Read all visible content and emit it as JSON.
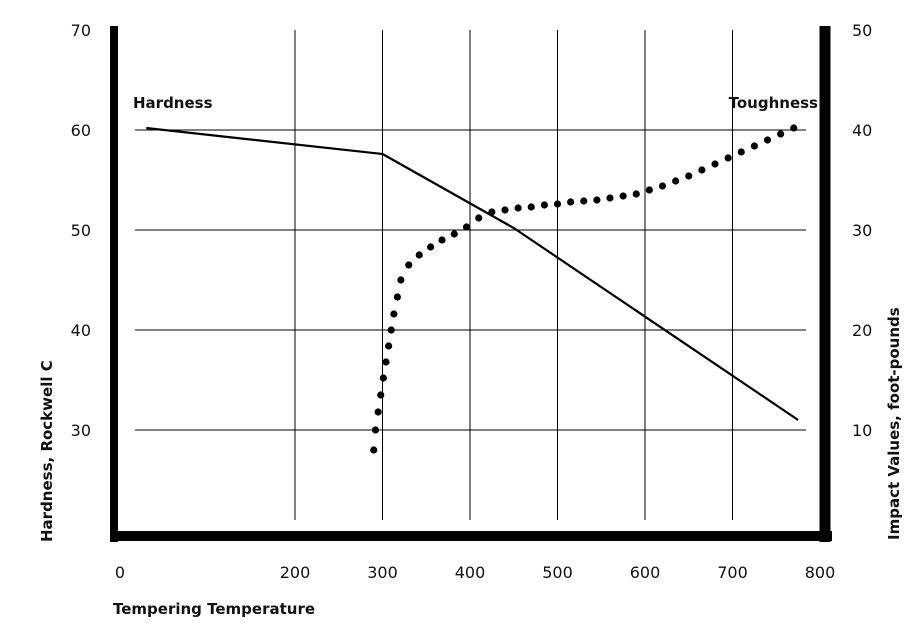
{
  "chart_data": {
    "type": "line",
    "xlabel": "Tempering Temperature",
    "ylabel": "Hardness, Rockwell C",
    "y2label": "Impact Values, foot-pounds",
    "xlim": [
      0,
      800
    ],
    "ylim": [
      20,
      70
    ],
    "y2lim": [
      0,
      50
    ],
    "x_ticks": [
      0,
      200,
      300,
      400,
      500,
      600,
      700,
      800
    ],
    "y_ticks": [
      30,
      40,
      50,
      60,
      70
    ],
    "y2_ticks": [
      10,
      20,
      30,
      40,
      50
    ],
    "grid": true,
    "annotations": {
      "hardness": "Hardness",
      "toughness": "Toughness"
    },
    "series": [
      {
        "name": "Hardness",
        "axis": "left",
        "style": "solid",
        "x": [
          30,
          300,
          450,
          775
        ],
        "y": [
          60.2,
          57.6,
          50.2,
          31.0
        ]
      },
      {
        "name": "Toughness",
        "axis": "right",
        "style": "dotted",
        "x": [
          290,
          292,
          295,
          298,
          301,
          304,
          307,
          310,
          313,
          317,
          321,
          330,
          342,
          355,
          368,
          382,
          396,
          410,
          425,
          440,
          455,
          470,
          485,
          500,
          515,
          530,
          545,
          560,
          575,
          590,
          605,
          620,
          635,
          650,
          665,
          680,
          695,
          710,
          725,
          740,
          755,
          770
        ],
        "y": [
          8.0,
          10.0,
          11.8,
          13.5,
          15.2,
          16.8,
          18.4,
          20.0,
          21.6,
          23.3,
          25.0,
          26.5,
          27.5,
          28.3,
          29.0,
          29.6,
          30.3,
          31.2,
          31.8,
          32.0,
          32.2,
          32.3,
          32.5,
          32.6,
          32.8,
          32.9,
          33.0,
          33.2,
          33.4,
          33.6,
          34.0,
          34.4,
          34.9,
          35.4,
          36.0,
          36.6,
          37.2,
          37.8,
          38.4,
          39.0,
          39.6,
          40.2
        ]
      }
    ]
  }
}
